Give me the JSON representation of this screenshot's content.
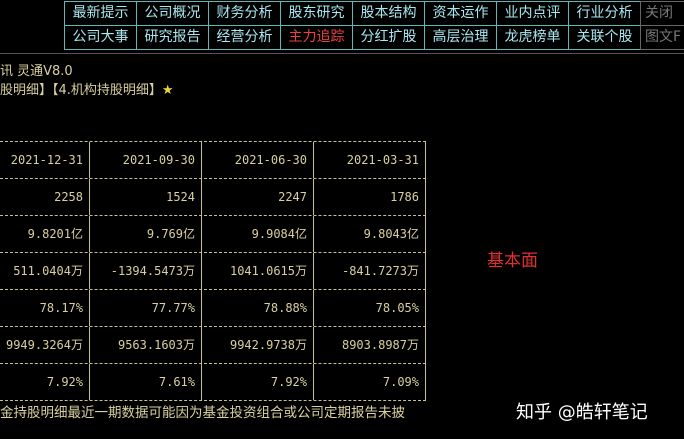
{
  "nav": {
    "row1": [
      "最新提示",
      "公司概况",
      "财务分析",
      "股东研究",
      "股本结构",
      "资本运作",
      "业内点评",
      "行业分析",
      "关闭"
    ],
    "row2": [
      "公司大事",
      "研究报告",
      "经营分析",
      "主力追踪",
      "分红扩股",
      "高层治理",
      "龙虎榜单",
      "关联个股",
      "图文F"
    ],
    "active": "主力追踪",
    "colors": {
      "text": "#a8e8f0",
      "active": "#e84040",
      "border": "#5fb8b8"
    }
  },
  "header": {
    "app_title": "讯 灵通V8.0",
    "breadcrumb": "股明细】【4.机构持股明细】",
    "star": "★"
  },
  "table": {
    "columns": [
      "2021-12-31",
      "2021-09-30",
      "2021-06-30",
      "2021-03-31"
    ],
    "rows": [
      [
        "2258",
        "1524",
        "2247",
        "1786"
      ],
      [
        "9.8201亿",
        "9.769亿",
        "9.9084亿",
        "9.8043亿"
      ],
      [
        "511.0404万",
        "-1394.5473万",
        "1041.0615万",
        "-841.7273万"
      ],
      [
        "78.17%",
        "77.77%",
        "78.88%",
        "78.05%"
      ],
      [
        "9949.3264万",
        "9563.1603万",
        "9942.9738万",
        "8903.8987万"
      ],
      [
        "7.92%",
        "7.61%",
        "7.92%",
        "7.09%"
      ]
    ]
  },
  "footnote": "金持股明细最近一期数据可能因为基金投资组合或公司定期报告未披",
  "annotation": "基本面",
  "watermark": "知乎 @皓轩笔记"
}
